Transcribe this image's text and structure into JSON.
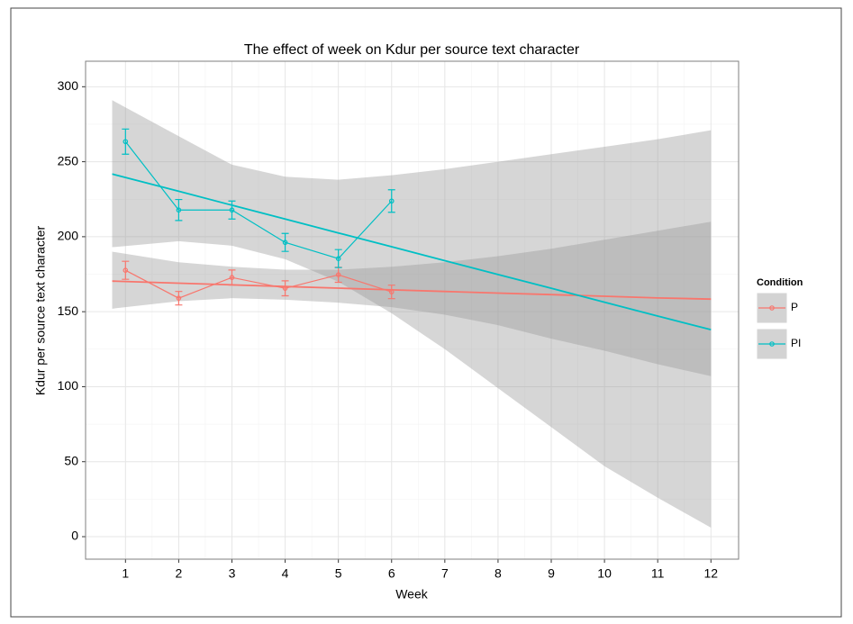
{
  "chart_data": {
    "type": "line",
    "title": "The effect of week on Kdur per source text character",
    "x_label": "Week",
    "y_label": "Kdur per source text character",
    "legend_title": "Condition",
    "xlim": [
      0.25,
      12.52
    ],
    "ylim": [
      -15,
      317
    ],
    "xticks": [
      1,
      2,
      3,
      4,
      5,
      6,
      7,
      8,
      9,
      10,
      11,
      12
    ],
    "yticks": [
      0,
      50,
      100,
      150,
      200,
      250,
      300
    ],
    "grid": true,
    "series": [
      {
        "name": "P",
        "color": "#F8766D",
        "x": [
          1,
          2,
          3,
          4,
          5,
          6
        ],
        "values": [
          177.6,
          159,
          172.8,
          165.6,
          174.6,
          163.2
        ],
        "errors": [
          6,
          4.5,
          5,
          5,
          5,
          4.5
        ],
        "fit_x": [
          0.75,
          2,
          3,
          4,
          5,
          6,
          7,
          8,
          9,
          10,
          11,
          12
        ],
        "fit": [
          170.4,
          169,
          167.9,
          166.8,
          165.7,
          164.6,
          163.5,
          162.4,
          161.4,
          160.3,
          159.2,
          158.4
        ],
        "fit_lower": [
          152,
          157,
          159,
          158,
          156,
          153,
          148,
          141,
          132,
          124,
          115,
          107
        ],
        "fit_upper": [
          190,
          183,
          180,
          178,
          178,
          180,
          183,
          187,
          192,
          198,
          204,
          210
        ]
      },
      {
        "name": "PI",
        "color": "#00BFC4",
        "x": [
          1,
          2,
          3,
          4,
          5,
          6
        ],
        "values": [
          263.4,
          217.8,
          217.8,
          196.2,
          185.4,
          223.8
        ],
        "errors": [
          8.4,
          7,
          6,
          6,
          6,
          7.5
        ],
        "fit_x": [
          0.75,
          2,
          3,
          4,
          5,
          6,
          7,
          8,
          9,
          10,
          11,
          12
        ],
        "fit": [
          241.8,
          230.3,
          221,
          211.8,
          202.5,
          193.3,
          184,
          174.8,
          165.6,
          156.3,
          147.1,
          138
        ],
        "fit_lower": [
          193,
          197,
          194,
          185,
          170,
          149,
          125,
          99,
          73,
          47,
          26,
          6
        ],
        "fit_upper": [
          291,
          267,
          248,
          240,
          238,
          241,
          245,
          250,
          255,
          260,
          265,
          271
        ]
      }
    ]
  }
}
